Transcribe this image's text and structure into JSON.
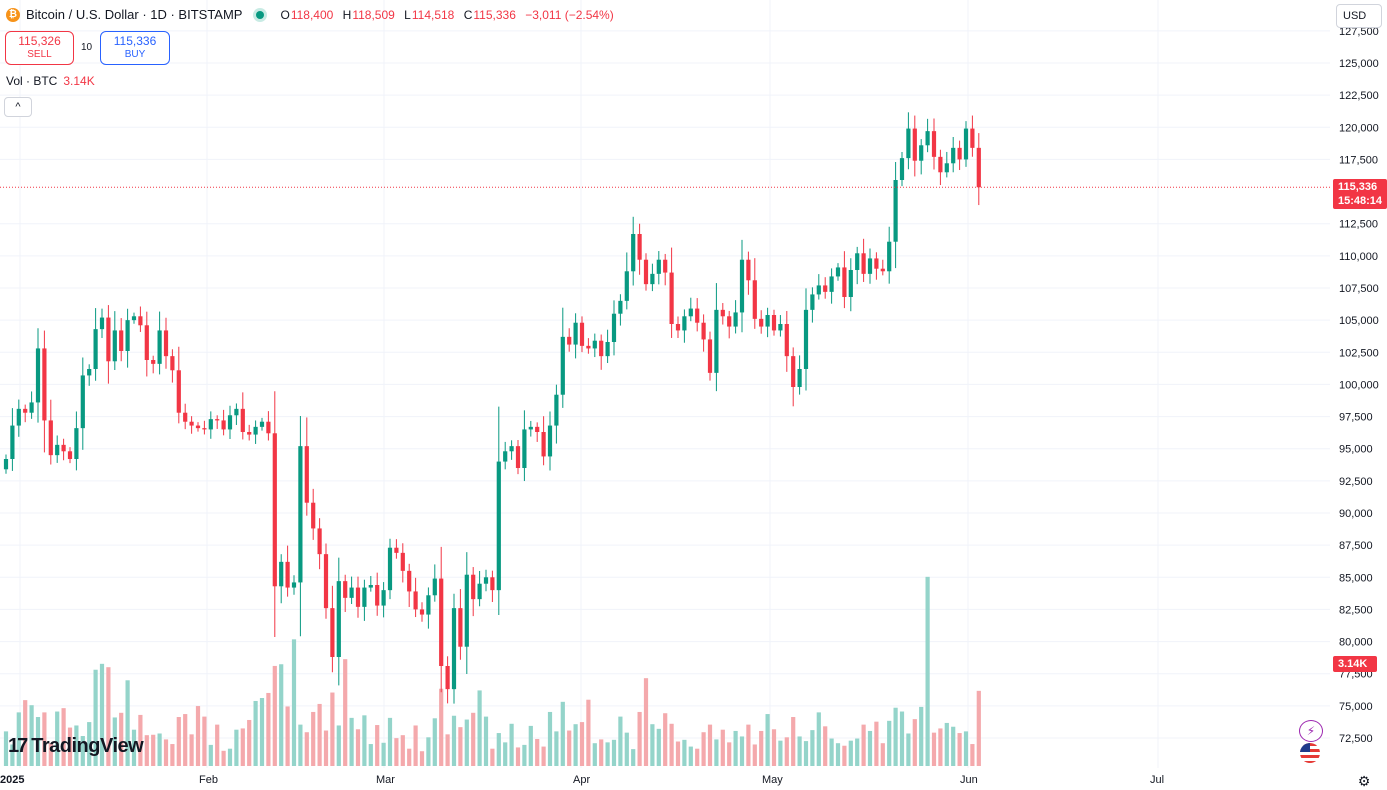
{
  "header": {
    "symbol": "Bitcoin / U.S. Dollar · 1D · BITSTAMP",
    "coin_icon": "bitcoin-icon",
    "ohlc": [
      {
        "k": "O",
        "v": "118,400"
      },
      {
        "k": "H",
        "v": "118,509"
      },
      {
        "k": "L",
        "v": "114,518"
      },
      {
        "k": "C",
        "v": "115,336"
      }
    ],
    "change": "−3,011 (−2.54%)"
  },
  "trade": {
    "sell_price": "115,326",
    "sell_label": "SELL",
    "spread": "10",
    "buy_price": "115,336",
    "buy_label": "BUY"
  },
  "volume_legend": {
    "label": "Vol · BTC",
    "value": "3.14K"
  },
  "currency": "USD",
  "logo_text": "TradingView",
  "price_tag": {
    "price": "115,336",
    "countdown": "15:48:14"
  },
  "volume_tag": "3.14K",
  "colors": {
    "up": "#089981",
    "down": "#f23645",
    "up_vol": "#94d4ca",
    "down_vol": "#f4a9ac",
    "accent": "#2962ff"
  },
  "chart_data": {
    "type": "candlestick",
    "title": "Bitcoin / U.S. Dollar · 1D · BITSTAMP",
    "y_axis": {
      "range": [
        70000,
        127500
      ],
      "ticks": [
        "125,000",
        "122,500",
        "120,000",
        "117,500",
        "112,500",
        "110,000",
        "107,500",
        "105,000",
        "102,500",
        "100,000",
        "97,500",
        "95,000",
        "92,500",
        "90,000",
        "87,500",
        "85,000",
        "82,500",
        "80,000",
        "77,500",
        "75,000",
        "72,500"
      ],
      "partial_tick": "127,500"
    },
    "x_axis": {
      "labels": [
        "2025",
        "Feb",
        "Mar",
        "Apr",
        "May",
        "Jun",
        "Jul"
      ]
    },
    "last_close": 115336,
    "closes": [
      94200,
      96800,
      98100,
      97800,
      98600,
      102800,
      97200,
      94500,
      95300,
      94800,
      94200,
      96600,
      100700,
      101200,
      104300,
      105200,
      101800,
      104200,
      102600,
      105000,
      105300,
      104600,
      101900,
      101600,
      104200,
      102200,
      101100,
      97800,
      97100,
      96800,
      96600,
      96500,
      97300,
      97200,
      96500,
      97600,
      98100,
      96300,
      96100,
      96700,
      97100,
      96200,
      84300,
      86200,
      84200,
      84600,
      95200,
      90800,
      88800,
      86800,
      82600,
      78800,
      84700,
      83400,
      84200,
      82700,
      84200,
      84400,
      82800,
      84000,
      87300,
      86900,
      85500,
      83900,
      82500,
      82100,
      83600,
      84900,
      78100,
      76300,
      82600,
      79600,
      85200,
      83300,
      84500,
      85000,
      84000,
      94000,
      94800,
      95200,
      93500,
      96500,
      96700,
      96300,
      94400,
      96800,
      99200,
      103700,
      103100,
      104800,
      103000,
      102800,
      103400,
      102200,
      103300,
      105500,
      106500,
      108800,
      111700,
      109700,
      107800,
      108600,
      109700,
      108700,
      104700,
      104200,
      105300,
      105900,
      104800,
      103500,
      100900,
      105800,
      105300,
      104500,
      105600,
      109700,
      108100,
      105100,
      104500,
      105400,
      104200,
      104700,
      102200,
      99800,
      101200,
      105800,
      107000,
      107700,
      107200,
      108400,
      109100,
      106800,
      108900,
      110200,
      108600,
      109800,
      109000,
      108800,
      111100,
      115900,
      117600,
      119900,
      117400,
      118600,
      119700,
      117700,
      116500,
      117200,
      118400,
      117500,
      119900,
      118400,
      115336
    ],
    "volumes": [
      8200,
      5100,
      12700,
      15600,
      14400,
      11600,
      12700,
      5400,
      12900,
      13700,
      9100,
      9600,
      7100,
      10400,
      22800,
      24200,
      23400,
      11500,
      12600,
      20300,
      8600,
      12100,
      7300,
      7400,
      7700,
      6300,
      5200,
      11600,
      12300,
      7500,
      14200,
      11700,
      5000,
      9800,
      3600,
      4100,
      8600,
      8900,
      10900,
      15400,
      16100,
      17300,
      23700,
      24100,
      14100,
      30000,
      9800,
      8000,
      12800,
      14700,
      8400,
      17400,
      9600,
      25300,
      11400,
      8700,
      12000,
      5200,
      9700,
      5500,
      11400,
      6600,
      7300,
      4100,
      9600,
      3500,
      6800,
      11300,
      18300,
      7500,
      11900,
      9200,
      11000,
      12600,
      17900,
      11700,
      4100,
      7800,
      5600,
      10000,
      4400,
      5000,
      9500,
      6400,
      4600,
      12800,
      8200,
      15200,
      8400,
      9900,
      10400,
      15700,
      5400,
      6300,
      5600,
      6200,
      11700,
      7900,
      4000,
      12800,
      20800,
      9900,
      8800,
      12500,
      10000,
      5800,
      6200,
      4600,
      4100,
      8000,
      9800,
      6300,
      8600,
      5600,
      8300,
      7000,
      9800,
      5100,
      8300,
      12300,
      8700,
      6000,
      6800,
      11600,
      7000,
      5900,
      8500,
      12700,
      9400,
      6500,
      5400,
      4800,
      6000,
      6500,
      9800,
      8300,
      10500,
      5400,
      10700,
      13800,
      12900,
      7700,
      11100,
      14000,
      44800,
      7900,
      8900,
      10200,
      9300,
      7800,
      8200,
      5200,
      17800,
      26000
    ]
  }
}
